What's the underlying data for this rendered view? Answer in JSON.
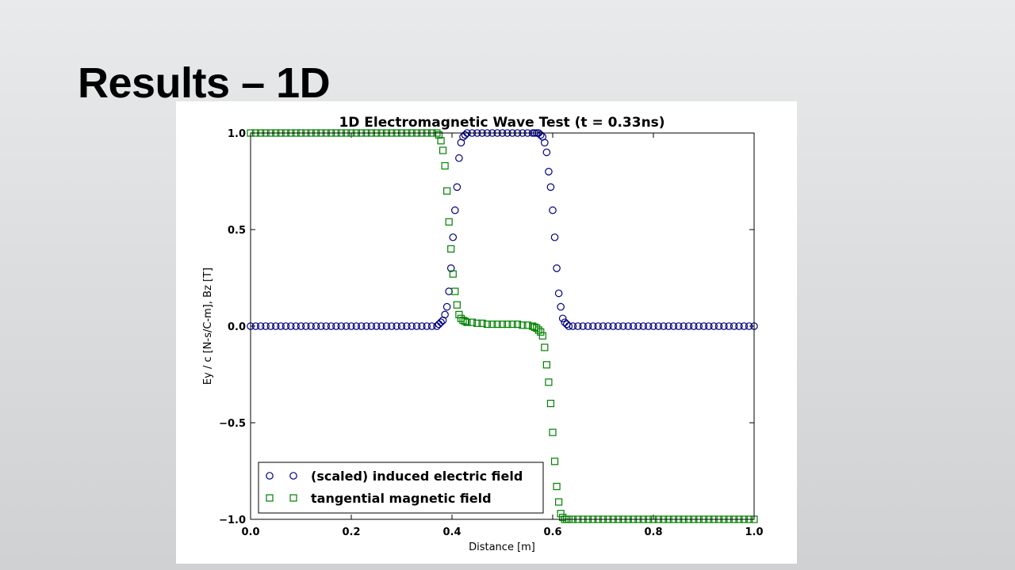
{
  "slide_title": "Results – 1D",
  "chart_data": {
    "type": "scatter",
    "title": "1D Electromagnetic Wave Test (t = 0.33ns)",
    "x_label": "Distance [m]",
    "y_label": "Ey / c [N-s/C-m], Bz [T]",
    "x": [
      0,
      0.01,
      0.02,
      0.03,
      0.04,
      0.05,
      0.06,
      0.07,
      0.08,
      0.09,
      0.1,
      0.11,
      0.12,
      0.13,
      0.14,
      0.15,
      0.16,
      0.17,
      0.18,
      0.19,
      0.2,
      0.21,
      0.22,
      0.23,
      0.24,
      0.25,
      0.26,
      0.27,
      0.28,
      0.29,
      0.3,
      0.31,
      0.32,
      0.33,
      0.34,
      0.35,
      0.36,
      0.37,
      0.374,
      0.378,
      0.382,
      0.386,
      0.39,
      0.394,
      0.398,
      0.402,
      0.406,
      0.41,
      0.414,
      0.418,
      0.422,
      0.426,
      0.43,
      0.44,
      0.45,
      0.46,
      0.47,
      0.48,
      0.49,
      0.5,
      0.51,
      0.52,
      0.53,
      0.54,
      0.55,
      0.56,
      0.564,
      0.568,
      0.572,
      0.576,
      0.58,
      0.584,
      0.588,
      0.592,
      0.596,
      0.6,
      0.604,
      0.608,
      0.612,
      0.616,
      0.62,
      0.624,
      0.628,
      0.632,
      0.64,
      0.65,
      0.66,
      0.67,
      0.68,
      0.69,
      0.7,
      0.71,
      0.72,
      0.73,
      0.74,
      0.75,
      0.76,
      0.77,
      0.78,
      0.79,
      0.8,
      0.81,
      0.82,
      0.83,
      0.84,
      0.85,
      0.86,
      0.87,
      0.88,
      0.89,
      0.9,
      0.91,
      0.92,
      0.93,
      0.94,
      0.95,
      0.96,
      0.97,
      0.98,
      0.99,
      1
    ],
    "series": [
      {
        "name": "(scaled) induced electric field",
        "color": "#000080",
        "marker": "circle",
        "values": [
          0,
          0,
          0,
          0,
          0,
          0,
          0,
          0,
          0,
          0,
          0,
          0,
          0,
          0,
          0,
          0,
          0,
          0,
          0,
          0,
          0,
          0,
          0,
          0,
          0,
          0,
          0,
          0,
          0,
          0,
          0,
          0,
          0,
          0,
          0,
          0,
          0,
          0,
          0.01,
          0.02,
          0.03,
          0.06,
          0.1,
          0.18,
          0.3,
          0.46,
          0.6,
          0.72,
          0.87,
          0.95,
          0.98,
          0.99,
          1,
          1,
          1,
          1,
          1,
          1,
          1,
          1,
          1,
          1,
          1,
          1,
          1,
          1,
          1,
          1,
          1,
          0.99,
          0.98,
          0.95,
          0.9,
          0.8,
          0.72,
          0.6,
          0.46,
          0.3,
          0.17,
          0.1,
          0.04,
          0.02,
          0.01,
          0,
          0,
          0,
          0,
          0,
          0,
          0,
          0,
          0,
          0,
          0,
          0,
          0,
          0,
          0,
          0,
          0,
          0,
          0,
          0,
          0,
          0,
          0,
          0,
          0,
          0,
          0,
          0,
          0,
          0,
          0,
          0,
          0,
          0,
          0,
          0,
          0,
          0
        ]
      },
      {
        "name": "tangential magnetic field",
        "color": "#008000",
        "marker": "square",
        "values": [
          1,
          1,
          1,
          1,
          1,
          1,
          1,
          1,
          1,
          1,
          1,
          1,
          1,
          1,
          1,
          1,
          1,
          1,
          1,
          1,
          1,
          1,
          1,
          1,
          1,
          1,
          1,
          1,
          1,
          1,
          1,
          1,
          1,
          1,
          1,
          1,
          1,
          1,
          0.99,
          0.96,
          0.91,
          0.83,
          0.7,
          0.54,
          0.4,
          0.27,
          0.18,
          0.11,
          0.06,
          0.04,
          0.03,
          0.025,
          0.02,
          0.02,
          0.015,
          0.015,
          0.01,
          0.01,
          0.01,
          0.01,
          0.01,
          0.01,
          0.01,
          0.005,
          0.005,
          0,
          -0.005,
          -0.01,
          -0.02,
          -0.03,
          -0.05,
          -0.11,
          -0.2,
          -0.29,
          -0.4,
          -0.55,
          -0.7,
          -0.83,
          -0.91,
          -0.97,
          -0.99,
          -1,
          -1,
          -1,
          -1,
          -1,
          -1,
          -1,
          -1,
          -1,
          -1,
          -1,
          -1,
          -1,
          -1,
          -1,
          -1,
          -1,
          -1,
          -1,
          -1,
          -1,
          -1,
          -1,
          -1,
          -1,
          -1,
          -1,
          -1,
          -1,
          -1,
          -1,
          -1,
          -1,
          -1,
          -1,
          -1,
          -1,
          -1,
          -1,
          -1
        ]
      }
    ],
    "xlim": [
      0,
      1
    ],
    "ylim": [
      -1,
      1
    ],
    "xticks": [
      {
        "value": 0,
        "label": "0.0"
      },
      {
        "value": 0.2,
        "label": "0.2"
      },
      {
        "value": 0.4,
        "label": "0.4"
      },
      {
        "value": 0.6,
        "label": "0.6"
      },
      {
        "value": 0.8,
        "label": "0.8"
      },
      {
        "value": 1,
        "label": "1.0"
      }
    ],
    "yticks": [
      {
        "value": -1,
        "label": "−1.0"
      },
      {
        "value": -0.5,
        "label": "−0.5"
      },
      {
        "value": 0,
        "label": "0.0"
      },
      {
        "value": 0.5,
        "label": "0.5"
      },
      {
        "value": 1,
        "label": "1.0"
      }
    ],
    "legend": "lower left"
  }
}
